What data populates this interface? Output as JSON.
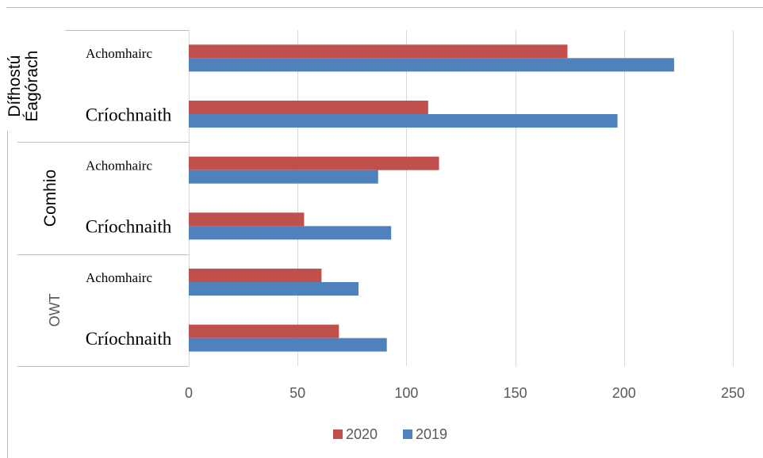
{
  "chart_data": {
    "type": "bar",
    "orientation": "horizontal",
    "groups": [
      {
        "name": "Dífhostú Éagórach",
        "name_lines": [
          "Dífhostú",
          "Éagórach"
        ],
        "categories": [
          "Achomhairc",
          "Críochnaith"
        ]
      },
      {
        "name": "Comhio",
        "name_lines": [
          "Comhio"
        ],
        "categories": [
          "Achomhairc",
          "Críochnaith"
        ]
      },
      {
        "name": "OWT",
        "name_lines": [
          "OWT"
        ],
        "categories": [
          "Achomhairc",
          "Críochnaith"
        ]
      }
    ],
    "series": [
      {
        "name": "2020",
        "color": "#C0504D",
        "values": [
          174,
          110,
          115,
          53,
          61,
          69
        ]
      },
      {
        "name": "2019",
        "color": "#4F81BD",
        "values": [
          223,
          197,
          87,
          93,
          78,
          91
        ]
      }
    ],
    "xlim": [
      0,
      250
    ],
    "xticks": [
      0,
      50,
      100,
      150,
      200,
      250
    ],
    "xtick_labels": [
      "0",
      "50",
      "100",
      "150",
      "200",
      "250"
    ],
    "grid": "vertical",
    "legend_position": "bottom",
    "legend_order": [
      "2020",
      "2019"
    ]
  }
}
